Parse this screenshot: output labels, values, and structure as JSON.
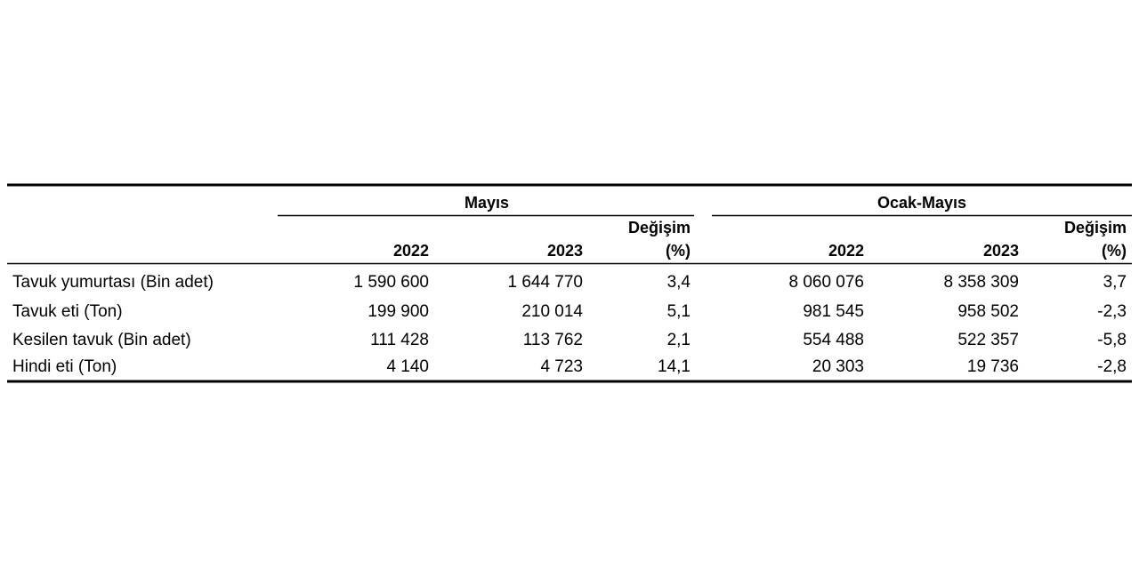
{
  "table": {
    "groups": [
      "Mayıs",
      "Ocak-Mayıs"
    ],
    "change_label": [
      "Değişim",
      "(%)"
    ],
    "columns": [
      "2022",
      "2023",
      "2022",
      "2023"
    ],
    "rows": [
      [
        "Tavuk yumurtası (Bin adet)",
        "1 590 600",
        "1 644 770",
        "3,4",
        "8 060 076",
        "8 358 309",
        "3,7"
      ],
      [
        "Tavuk eti (Ton)",
        "199 900",
        "210 014",
        "5,1",
        "981 545",
        "958 502",
        "-2,3"
      ],
      [
        "Kesilen tavuk (Bin adet)",
        "111 428",
        "113 762",
        "2,1",
        "554 488",
        "522 357",
        "-5,8"
      ],
      [
        "Hindi eti (Ton)",
        "4 140",
        "4 723",
        "14,1",
        "20 303",
        "19 736",
        "-2,8"
      ]
    ]
  }
}
